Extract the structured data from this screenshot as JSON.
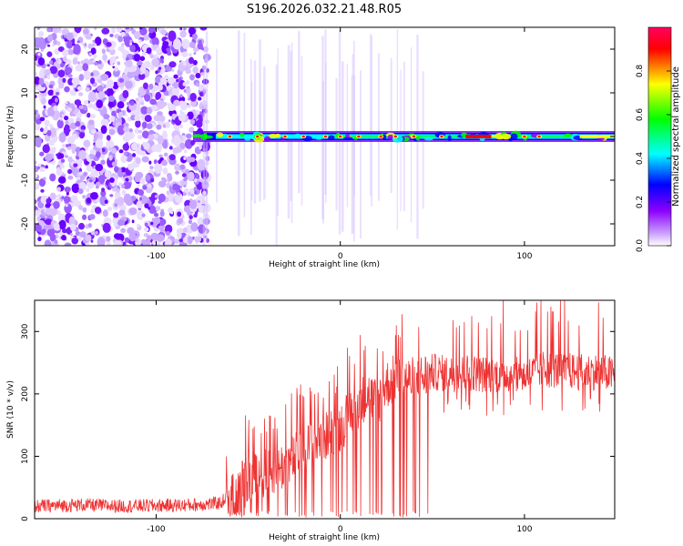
{
  "page": {
    "title": "S196.2026.032.21.48.R05"
  },
  "chart_data": [
    {
      "type": "heatmap",
      "title": "S196.2026.032.21.48.R05",
      "xlabel": "Height of straight line (km)",
      "ylabel": "Frequency (Hz)",
      "xlim": [
        -166,
        149
      ],
      "ylim": [
        -25,
        25
      ],
      "xticks": [
        -100,
        0,
        100
      ],
      "yticks": [
        -20,
        -10,
        0,
        10,
        20
      ],
      "colorbar": {
        "label": "Normalized spectral amplitude",
        "range": [
          0,
          1
        ],
        "ticks": [
          0.0,
          0.2,
          0.4,
          0.6,
          0.8
        ],
        "colormap": [
          "#ffffff",
          "#8b00ff",
          "#0000ff",
          "#00ffff",
          "#00ff00",
          "#ffff00",
          "#ff0000"
        ]
      },
      "description_values": {
        "noise_region_km": [
          -166,
          -80
        ],
        "signal_start_km": -80,
        "signal_frequency_hz": 0
      }
    },
    {
      "type": "line",
      "xlabel": "Height of straight line (km)",
      "ylabel": "SNR (10 * v/v)",
      "xlim": [
        -166,
        149
      ],
      "ylim": [
        0,
        350
      ],
      "xticks": [
        -100,
        0,
        100
      ],
      "yticks": [
        0,
        100,
        200,
        300
      ],
      "line_color": "#ee3333",
      "series": [
        {
          "name": "SNR",
          "x": [
            -166,
            -140,
            -120,
            -100,
            -80,
            -65,
            -60,
            -50,
            -40,
            -30,
            -20,
            -10,
            0,
            5,
            10,
            15,
            20,
            25,
            30,
            40,
            48,
            50,
            60,
            70,
            80,
            90,
            100,
            110,
            120,
            130,
            140,
            149
          ],
          "values": [
            20,
            22,
            20,
            21,
            22,
            25,
            40,
            60,
            75,
            85,
            110,
            130,
            145,
            170,
            185,
            200,
            185,
            215,
            225,
            220,
            230,
            235,
            232,
            235,
            230,
            232,
            228,
            240,
            238,
            235,
            236,
            230
          ]
        }
      ]
    }
  ]
}
